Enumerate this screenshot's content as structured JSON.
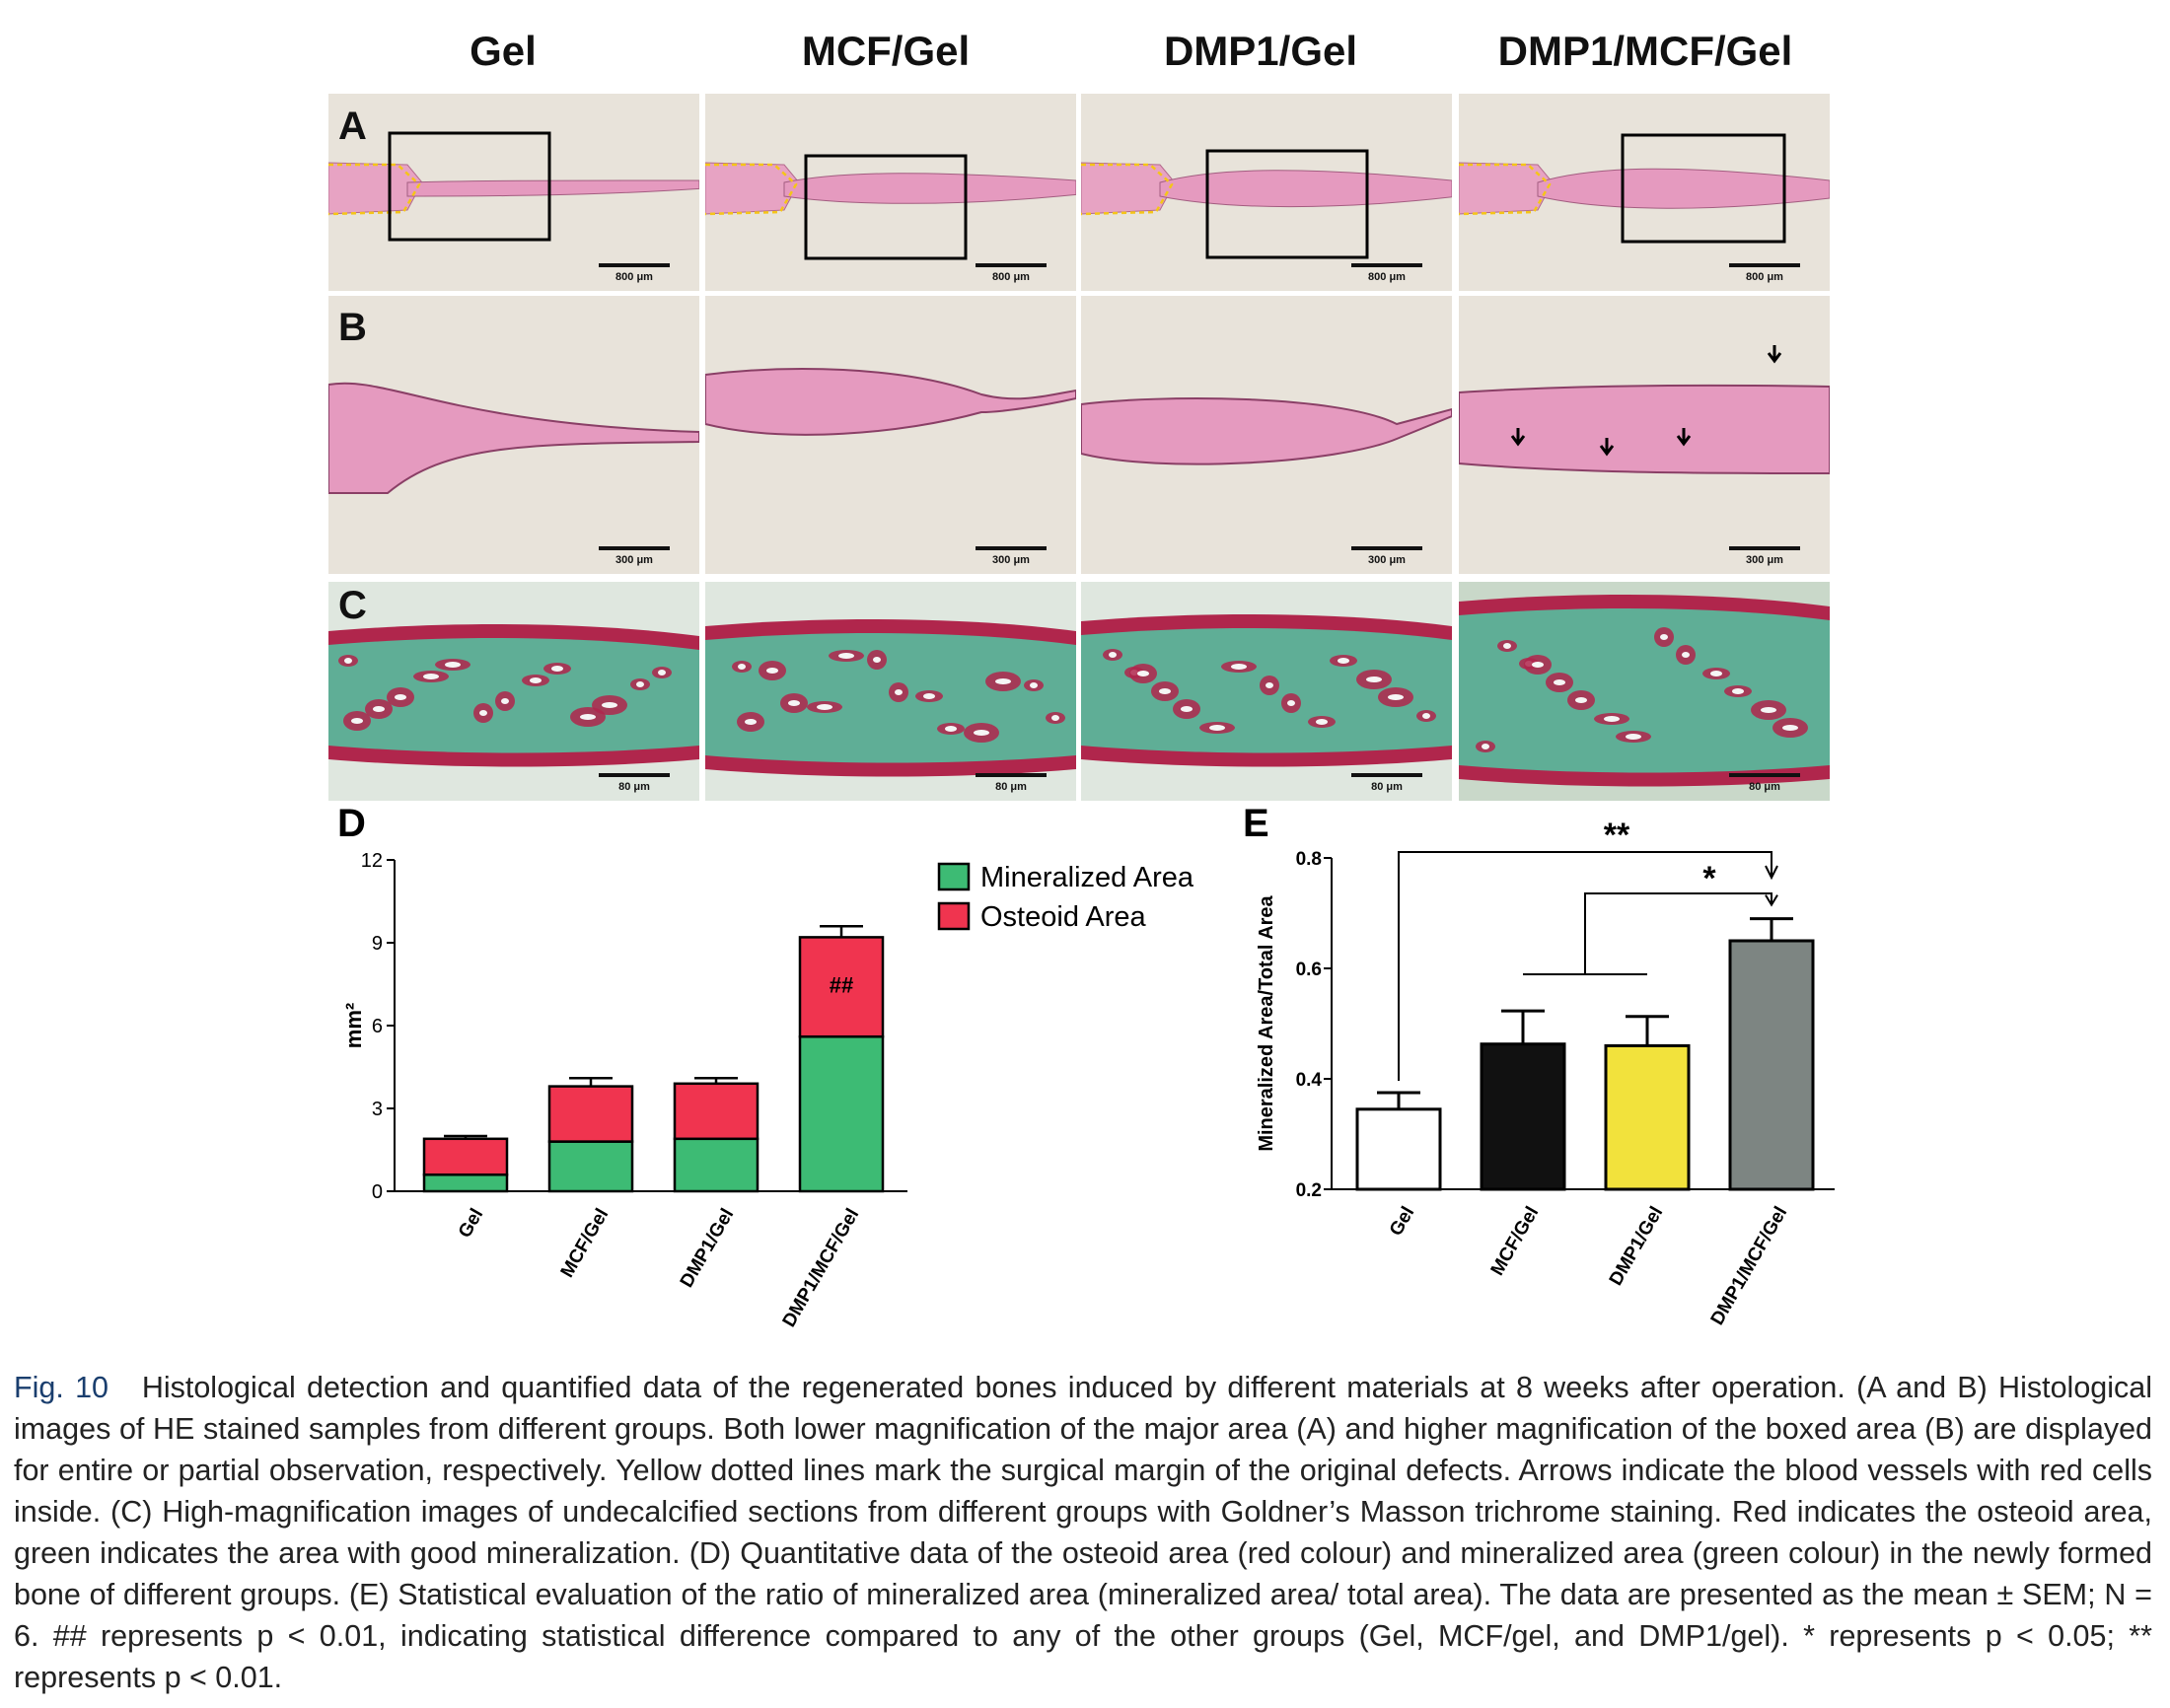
{
  "column_titles": [
    "Gel",
    "MCF/Gel",
    "DMP1/Gel",
    "DMP1/MCF/Gel"
  ],
  "row_labels": {
    "A": "A",
    "B": "B",
    "C": "C",
    "D": "D",
    "E": "E"
  },
  "scale_bars": {
    "A": "800 μm",
    "B": "300 μm",
    "C": "80 μm"
  },
  "colors": {
    "he_background": "#e8e3da",
    "he_tissue": "#e59abf",
    "masson_background": "#dfe7df",
    "masson_green": "#5fae96",
    "masson_red": "#b0264c",
    "mineralized": "#3dbb74",
    "osteoid": "#f0344f",
    "bar_gel": "#ffffff",
    "bar_mcf": "#111111",
    "bar_dmp1": "#f2e23c",
    "bar_dmp1_mcf": "#7d8582",
    "yellow_margin": "#f5c518"
  },
  "chart_data": [
    {
      "panel": "D",
      "type": "bar",
      "stacked": true,
      "categories": [
        "Gel",
        "MCF/Gel",
        "DMP1/Gel",
        "DMP1/MCF/Gel"
      ],
      "series": [
        {
          "name": "Mineralized Area",
          "values": [
            0.6,
            1.8,
            1.9,
            5.6
          ],
          "error": [
            0.15,
            0.35,
            0.4,
            0.6
          ]
        },
        {
          "name": "Osteoid Area",
          "values": [
            1.3,
            2.0,
            2.0,
            3.6
          ],
          "error": [
            0.1,
            0.3,
            0.2,
            0.4
          ]
        }
      ],
      "ylabel": "mm²",
      "ylim": [
        0,
        12
      ],
      "yticks": [
        0,
        3,
        6,
        9,
        12
      ],
      "legend_position": "top-right",
      "annotation": "##"
    },
    {
      "panel": "E",
      "type": "bar",
      "categories": [
        "Gel",
        "MCF/Gel",
        "DMP1/Gel",
        "DMP1/MCF/Gel"
      ],
      "values": [
        0.345,
        0.463,
        0.46,
        0.65
      ],
      "error": [
        0.03,
        0.06,
        0.053,
        0.04
      ],
      "ylabel": "Mineralized Area/Total Area",
      "ylim": [
        0.2,
        0.8
      ],
      "yticks": [
        "0.2",
        "0.4",
        "0.6",
        "0.8"
      ],
      "significance": [
        {
          "label": "**"
        },
        {
          "label": "*"
        }
      ]
    }
  ],
  "caption": {
    "fig_label": "Fig. 10",
    "text": "Histological detection and quantified data of the regenerated bones induced by different materials at 8 weeks after operation. (A and B) Histological images of HE stained samples from different groups. Both lower magnification of the major area (A) and higher magnification of the boxed area (B) are displayed for entire or partial observation, respectively. Yellow dotted lines mark the surgical margin of the original defects. Arrows indicate the blood vessels with red cells inside. (C) High-magnification images of undecalcified sections from different groups with Goldner’s Masson trichrome staining. Red indicates the osteoid area, green indicates the area with good mineralization. (D) Quantitative data of the osteoid area (red colour) and mineralized area (green colour) in the newly formed bone of different groups. (E) Statistical evaluation of the ratio of mineralized area (mineralized area/ total area). The data are presented as the mean ± SEM; N = 6. ## represents p < 0.01, indicating statistical difference compared to any of the other groups (Gel, MCF/gel, and DMP1/gel). * represents p < 0.05; ** represents p < 0.01."
  }
}
